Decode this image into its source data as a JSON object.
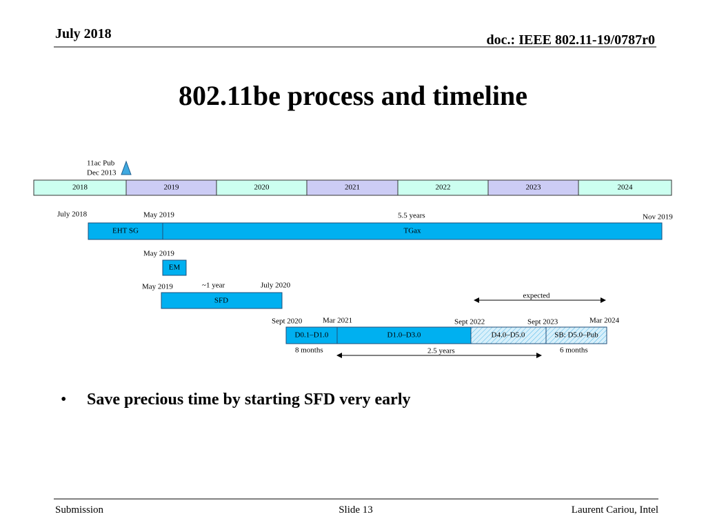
{
  "header": {
    "date": "July 2018",
    "doc": "doc.: IEEE 802.11-19/0787r0"
  },
  "title": "802.11be process and timeline",
  "timeline": {
    "marker": {
      "line1": "11ac Pub",
      "line2": "Dec 2013"
    },
    "years": [
      "2018",
      "2019",
      "2020",
      "2021",
      "2022",
      "2023",
      "2024"
    ],
    "row1": {
      "labels": [
        "July 2018",
        "May 2019",
        "5.5 years",
        "Nov 2019"
      ],
      "boxes": [
        "EHT SG",
        "TGax"
      ]
    },
    "row2": {
      "labels": [
        "May 2019"
      ],
      "boxes": [
        "EM"
      ]
    },
    "row3": {
      "labels": [
        "May 2019",
        "~1 year",
        "July 2020",
        "expected"
      ],
      "boxes": [
        "SFD"
      ]
    },
    "row4": {
      "labels": [
        "Sept 2020",
        "Mar 2021",
        "Sept 2022",
        "Sept 2023",
        "Mar 2024"
      ],
      "boxes": [
        "D0.1–D1.0",
        "D1.0–D3.0",
        "D4.0–D5.0",
        "SB: D5.0–Pub"
      ],
      "below": [
        "8 months",
        "2.5 years",
        "6 months"
      ]
    }
  },
  "bullets": [
    "Save precious time by starting SFD very early"
  ],
  "footer": {
    "left": "Submission",
    "center": "Slide 13",
    "right": "Laurent Cariou, Intel"
  }
}
